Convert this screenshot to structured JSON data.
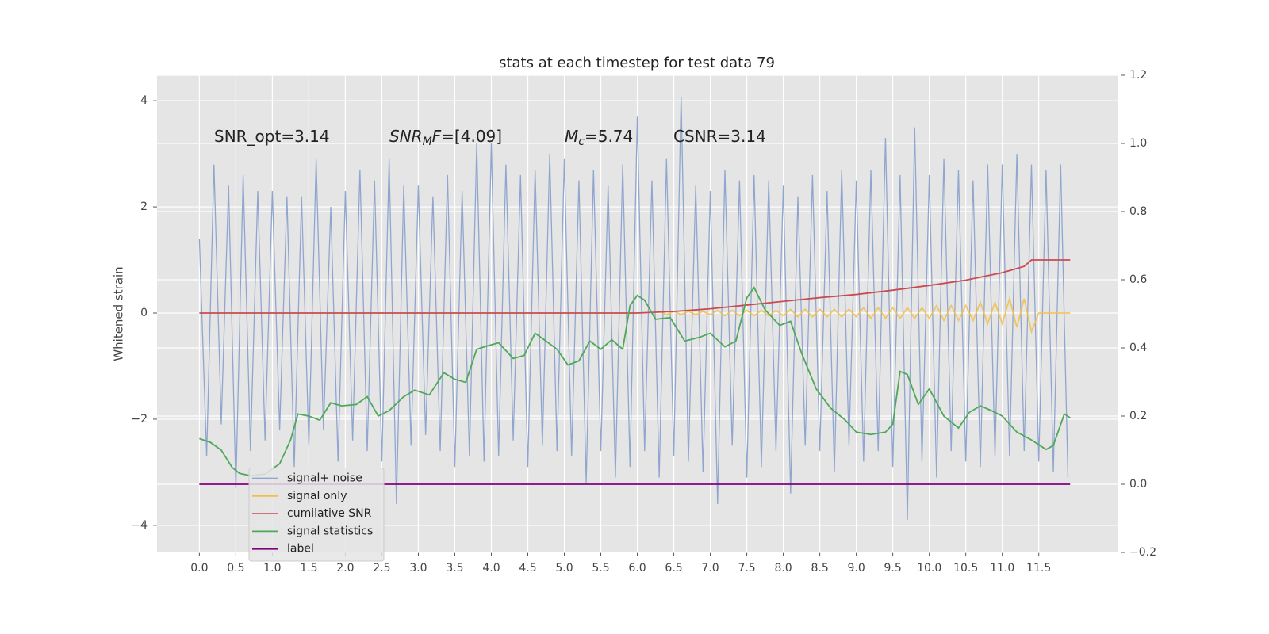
{
  "chart_data": {
    "type": "line",
    "title": "stats at each timestep for test data 79",
    "y_label": "Whitened strain",
    "annotations": [
      [
        {
          "text": "SNR_opt=3.14"
        }
      ],
      [
        {
          "text": "SNR",
          "style": "italic"
        },
        {
          "text": "M",
          "style": "italic-sub"
        },
        {
          "text": "F",
          "style": "italic"
        },
        {
          "text": "=[4.09]"
        }
      ],
      [
        {
          "text": "M",
          "style": "italic"
        },
        {
          "text": "c",
          "style": "italic-sub"
        },
        {
          "text": "=5.74"
        }
      ],
      [
        {
          "text": "CSNR=3.14"
        }
      ]
    ],
    "xlim": [
      -0.58,
      12.59
    ],
    "xticks": [
      {
        "value": 0,
        "label": "0.0"
      },
      0.5,
      {
        "value": 1,
        "label": "1.0"
      },
      1.5,
      {
        "value": 2,
        "label": "2.0"
      },
      2.5,
      {
        "value": 3,
        "label": "3.0"
      },
      3.5,
      {
        "value": 4,
        "label": "4.0"
      },
      4.5,
      {
        "value": 5,
        "label": "5.0"
      },
      5.5,
      {
        "value": 6,
        "label": "6.0"
      },
      6.5,
      {
        "value": 7,
        "label": "7.0"
      },
      7.5,
      {
        "value": 8,
        "label": "8.0"
      },
      8.5,
      {
        "value": 9,
        "label": "9.0"
      },
      9.5,
      {
        "value": 10,
        "label": "10.0"
      },
      10.5,
      {
        "value": 11,
        "label": "11.0"
      },
      11.5
    ],
    "ylim": [
      -4.51,
      4.48
    ],
    "yticks": [
      {
        "value": -4,
        "label": "−4"
      },
      {
        "value": -2,
        "label": "−2"
      },
      0,
      2,
      4
    ],
    "y2lim": [
      -0.2,
      1.2
    ],
    "y2ticks": [
      {
        "value": -0.2,
        "label": "−0.2"
      },
      {
        "value": 0,
        "label": "0.0"
      },
      0.2,
      0.4,
      0.6,
      0.8,
      {
        "value": 1,
        "label": "1.0"
      },
      1.2
    ],
    "grid": true,
    "legend_loc": "lower left",
    "series": [
      {
        "name": "signal+ noise",
        "color": "#91a6cf",
        "x": [
          0,
          0.1,
          0.2,
          0.3,
          0.4,
          0.5,
          0.6,
          0.7,
          0.8,
          0.9,
          1,
          1.1,
          1.2,
          1.3,
          1.4,
          1.5,
          1.6,
          1.7,
          1.8,
          1.9,
          2,
          2.1,
          2.2,
          2.3,
          2.4,
          2.5,
          2.6,
          2.7,
          2.8,
          2.9,
          3,
          3.1,
          3.2,
          3.3,
          3.4,
          3.5,
          3.6,
          3.7,
          3.8,
          3.9,
          4,
          4.1,
          4.2,
          4.3,
          4.4,
          4.5,
          4.6,
          4.7,
          4.8,
          4.9,
          5,
          5.1,
          5.2,
          5.3,
          5.4,
          5.5,
          5.6,
          5.7,
          5.8,
          5.9,
          6,
          6.1,
          6.2,
          6.3,
          6.4,
          6.5,
          6.6,
          6.7,
          6.8,
          6.9,
          7,
          7.1,
          7.2,
          7.3,
          7.4,
          7.5,
          7.6,
          7.7,
          7.8,
          7.9,
          8,
          8.1,
          8.2,
          8.3,
          8.4,
          8.5,
          8.6,
          8.7,
          8.8,
          8.9,
          9,
          9.1,
          9.2,
          9.3,
          9.4,
          9.5,
          9.6,
          9.7,
          9.8,
          9.9,
          10,
          10.1,
          10.2,
          10.3,
          10.4,
          10.5,
          10.6,
          10.7,
          10.8,
          10.9,
          11,
          11.1,
          11.2,
          11.3,
          11.4,
          11.5,
          11.6,
          11.7,
          11.8,
          11.9
        ],
        "values": [
          1.4,
          -2.7,
          2.8,
          -2.1,
          2.4,
          -3.3,
          2.6,
          -2.6,
          2.3,
          -2.4,
          2.3,
          -2.2,
          2.2,
          -2.9,
          2.2,
          -2.5,
          2.9,
          -2.2,
          2.0,
          -2.8,
          2.3,
          -2.4,
          2.7,
          -2.6,
          2.5,
          -2.8,
          2.9,
          -3.6,
          2.4,
          -2.5,
          2.4,
          -2.3,
          2.2,
          -2.6,
          2.6,
          -2.9,
          2.3,
          -2.7,
          3.2,
          -2.8,
          3.2,
          -2.7,
          2.8,
          -2.4,
          2.6,
          -2.9,
          2.7,
          -2.5,
          3.0,
          -2.6,
          2.9,
          -2.7,
          2.5,
          -3.2,
          2.7,
          -2.6,
          2.4,
          -3.1,
          2.8,
          -2.9,
          3.7,
          -2.6,
          2.5,
          -3.1,
          2.9,
          -2.7,
          4.08,
          -2.8,
          2.4,
          -3.0,
          2.3,
          -3.6,
          2.7,
          -2.5,
          2.5,
          -3.1,
          2.6,
          -2.9,
          2.5,
          -2.6,
          2.4,
          -3.4,
          2.2,
          -2.5,
          2.6,
          -2.6,
          2.3,
          -3.0,
          2.7,
          -2.5,
          2.5,
          -2.8,
          2.7,
          -2.6,
          3.3,
          -2.9,
          2.6,
          -3.9,
          3.5,
          -2.8,
          2.6,
          -3.1,
          2.9,
          -2.6,
          2.7,
          -2.8,
          2.5,
          -2.9,
          2.8,
          -2.7,
          2.8,
          -2.7,
          3.0,
          -2.6,
          2.8,
          -2.8,
          2.7,
          -3.0,
          2.8,
          -3.1
        ]
      },
      {
        "name": "signal only",
        "color": "#f2c04a",
        "x": [
          6.3,
          6.4,
          6.5,
          6.6,
          6.7,
          6.8,
          6.9,
          7,
          7.1,
          7.2,
          7.3,
          7.4,
          7.5,
          7.6,
          7.7,
          7.8,
          7.9,
          8,
          8.1,
          8.2,
          8.3,
          8.4,
          8.5,
          8.6,
          8.7,
          8.8,
          8.9,
          9,
          9.1,
          9.2,
          9.3,
          9.4,
          9.5,
          9.6,
          9.7,
          9.8,
          9.9,
          10,
          10.1,
          10.2,
          10.3,
          10.4,
          10.5,
          10.6,
          10.7,
          10.8,
          10.9,
          11,
          11.1,
          11.2,
          11.3,
          11.4,
          11.5,
          11.93
        ],
        "values": [
          0.03,
          -0.03,
          0.03,
          -0.03,
          0.03,
          -0.03,
          0.03,
          -0.03,
          0.05,
          -0.05,
          0.05,
          -0.05,
          0.05,
          -0.05,
          0.05,
          -0.05,
          0.05,
          -0.05,
          0.07,
          -0.07,
          0.07,
          -0.07,
          0.07,
          -0.07,
          0.07,
          -0.07,
          0.07,
          -0.07,
          0.1,
          -0.1,
          0.1,
          -0.1,
          0.1,
          -0.1,
          0.1,
          -0.1,
          0.1,
          -0.1,
          0.14,
          -0.14,
          0.14,
          -0.14,
          0.14,
          -0.14,
          0.2,
          -0.2,
          0.2,
          -0.2,
          0.27,
          -0.27,
          0.27,
          -0.35,
          0,
          0
        ]
      },
      {
        "name": "cumilative SNR",
        "color": "#c94b4f",
        "x": [
          0,
          6.0,
          6.5,
          7.0,
          7.5,
          8.0,
          8.5,
          9.0,
          9.5,
          10.0,
          10.5,
          11.0,
          11.3,
          11.4,
          11.93
        ],
        "values": [
          0,
          0,
          0.03,
          0.08,
          0.15,
          0.22,
          0.29,
          0.35,
          0.43,
          0.52,
          0.62,
          0.76,
          0.88,
          1.0,
          1.0
        ]
      },
      {
        "name": "signal statistics",
        "color": "#4fa85a",
        "axis": "y2",
        "x": [
          0,
          0.15,
          0.3,
          0.45,
          0.55,
          0.7,
          0.9,
          1.1,
          1.25,
          1.35,
          1.5,
          1.65,
          1.8,
          1.95,
          2.15,
          2.3,
          2.45,
          2.6,
          2.8,
          2.95,
          3.15,
          3.35,
          3.5,
          3.65,
          3.8,
          3.95,
          4.1,
          4.3,
          4.45,
          4.6,
          4.75,
          4.9,
          5.05,
          5.2,
          5.35,
          5.5,
          5.65,
          5.8,
          5.9,
          6.0,
          6.1,
          6.25,
          6.45,
          6.65,
          6.85,
          7.0,
          7.2,
          7.35,
          7.5,
          7.6,
          7.75,
          7.95,
          8.1,
          8.25,
          8.45,
          8.65,
          8.85,
          9.0,
          9.2,
          9.4,
          9.5,
          9.6,
          9.7,
          9.85,
          10.0,
          10.2,
          10.4,
          10.55,
          10.7,
          10.85,
          11.0,
          11.2,
          11.4,
          11.6,
          11.7,
          11.85,
          11.93
        ],
        "values": [
          0.134,
          0.123,
          0.1,
          0.049,
          0.032,
          0.025,
          0.03,
          0.06,
          0.13,
          0.206,
          0.2,
          0.188,
          0.239,
          0.23,
          0.234,
          0.257,
          0.2,
          0.216,
          0.257,
          0.276,
          0.262,
          0.327,
          0.308,
          0.299,
          0.396,
          0.406,
          0.415,
          0.369,
          0.378,
          0.443,
          0.42,
          0.396,
          0.35,
          0.362,
          0.42,
          0.396,
          0.424,
          0.396,
          0.524,
          0.554,
          0.54,
          0.484,
          0.489,
          0.42,
          0.431,
          0.443,
          0.403,
          0.42,
          0.547,
          0.577,
          0.512,
          0.466,
          0.478,
          0.385,
          0.28,
          0.223,
          0.188,
          0.153,
          0.146,
          0.153,
          0.176,
          0.331,
          0.322,
          0.234,
          0.28,
          0.2,
          0.165,
          0.211,
          0.23,
          0.216,
          0.2,
          0.153,
          0.13,
          0.102,
          0.114,
          0.206,
          0.195
        ]
      },
      {
        "name": "label",
        "color": "#800080",
        "axis": "y2",
        "x": [
          0,
          11.93
        ],
        "values": [
          0,
          0
        ]
      }
    ]
  }
}
